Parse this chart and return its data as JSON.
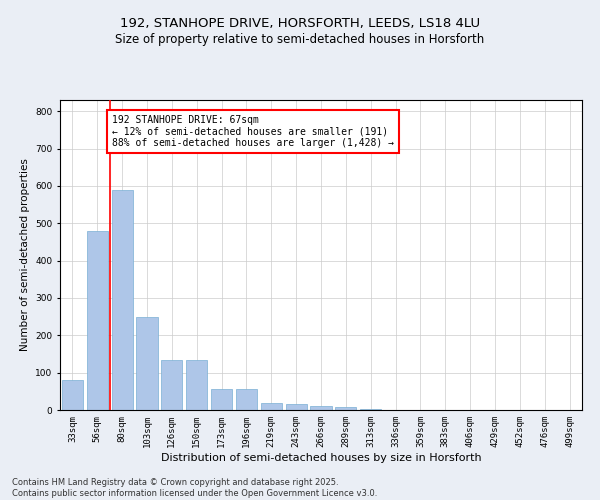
{
  "title": "192, STANHOPE DRIVE, HORSFORTH, LEEDS, LS18 4LU",
  "subtitle": "Size of property relative to semi-detached houses in Horsforth",
  "xlabel": "Distribution of semi-detached houses by size in Horsforth",
  "ylabel": "Number of semi-detached properties",
  "categories": [
    "33sqm",
    "56sqm",
    "80sqm",
    "103sqm",
    "126sqm",
    "150sqm",
    "173sqm",
    "196sqm",
    "219sqm",
    "243sqm",
    "266sqm",
    "289sqm",
    "313sqm",
    "336sqm",
    "359sqm",
    "383sqm",
    "406sqm",
    "429sqm",
    "452sqm",
    "476sqm",
    "499sqm"
  ],
  "values": [
    80,
    480,
    590,
    250,
    135,
    135,
    55,
    55,
    20,
    15,
    12,
    8,
    2,
    1,
    1,
    0,
    0,
    0,
    0,
    0,
    0
  ],
  "bar_color": "#aec6e8",
  "bar_edge_color": "#7aafd4",
  "vline_x": 1.5,
  "vline_color": "red",
  "annotation_title": "192 STANHOPE DRIVE: 67sqm",
  "annotation_line1": "← 12% of semi-detached houses are smaller (191)",
  "annotation_line2": "88% of semi-detached houses are larger (1,428) →",
  "annotation_box_color": "white",
  "annotation_box_edgecolor": "red",
  "ylim": [
    0,
    830
  ],
  "yticks": [
    0,
    100,
    200,
    300,
    400,
    500,
    600,
    700,
    800
  ],
  "bg_color": "#eaeef5",
  "plot_bg_color": "white",
  "footer1": "Contains HM Land Registry data © Crown copyright and database right 2025.",
  "footer2": "Contains public sector information licensed under the Open Government Licence v3.0.",
  "title_fontsize": 9.5,
  "subtitle_fontsize": 8.5,
  "axis_label_fontsize": 7.5,
  "tick_fontsize": 6.5,
  "annotation_fontsize": 7,
  "footer_fontsize": 6
}
